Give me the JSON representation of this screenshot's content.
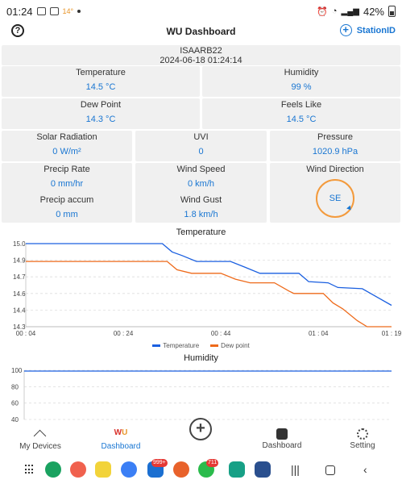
{
  "status_bar": {
    "time": "01:24",
    "temp": "14°",
    "battery": "42%"
  },
  "app_bar": {
    "title": "WU Dashboard",
    "station_button": "StationID"
  },
  "station": {
    "id": "ISAARB22",
    "datetime": "2024-06-18 01:24:14"
  },
  "readings": {
    "temperature": {
      "label": "Temperature",
      "value": "14.5 °C"
    },
    "humidity": {
      "label": "Humidity",
      "value": "99 %"
    },
    "dew_point": {
      "label": "Dew Point",
      "value": "14.3 °C"
    },
    "feels_like": {
      "label": "Feels Like",
      "value": "14.5 °C"
    },
    "solar_radiation": {
      "label": "Solar Radiation",
      "value": "0 W/m²"
    },
    "uvi": {
      "label": "UVI",
      "value": "0"
    },
    "pressure": {
      "label": "Pressure",
      "value": "1020.9 hPa"
    },
    "precip_rate": {
      "label": "Precip Rate",
      "value": "0 mm/hr"
    },
    "wind_speed": {
      "label": "Wind Speed",
      "value": "0 km/h"
    },
    "wind_direction": {
      "label": "Wind Direction",
      "value": "SE"
    },
    "precip_accum": {
      "label": "Precip accum",
      "value": "0 mm"
    },
    "wind_gust": {
      "label": "Wind Gust",
      "value": "1.8 km/h"
    }
  },
  "chart_data": [
    {
      "type": "line",
      "title": "Temperature",
      "x": [
        "00:04",
        "00:24",
        "00:44",
        "01:04",
        "01:19"
      ],
      "x_ticks": [
        "00 : 04",
        "00 : 24",
        "00 : 44",
        "01 : 04",
        "01 : 19"
      ],
      "ylim": [
        14.3,
        15.0
      ],
      "y_ticks": [
        "15.0",
        "14.9",
        "14.7",
        "14.6",
        "14.4",
        "14.3"
      ],
      "series": [
        {
          "name": "Temperature",
          "color": "#1a5fe0",
          "points": [
            [
              0,
              15.0
            ],
            [
              28,
              15.0
            ],
            [
              30,
              14.93
            ],
            [
              32,
              14.9
            ],
            [
              35,
              14.85
            ],
            [
              42,
              14.85
            ],
            [
              45,
              14.8
            ],
            [
              48,
              14.75
            ],
            [
              56,
              14.75
            ],
            [
              58,
              14.68
            ],
            [
              62,
              14.67
            ],
            [
              64,
              14.63
            ],
            [
              69,
              14.62
            ],
            [
              72,
              14.55
            ],
            [
              75,
              14.48
            ]
          ]
        },
        {
          "name": "Dew point",
          "color": "#ee6a1a",
          "points": [
            [
              0,
              14.85
            ],
            [
              29,
              14.85
            ],
            [
              31,
              14.78
            ],
            [
              34,
              14.75
            ],
            [
              40,
              14.75
            ],
            [
              43,
              14.7
            ],
            [
              46,
              14.67
            ],
            [
              51,
              14.67
            ],
            [
              54,
              14.6
            ],
            [
              55,
              14.58
            ],
            [
              61,
              14.58
            ],
            [
              63,
              14.5
            ],
            [
              65,
              14.45
            ],
            [
              68,
              14.35
            ],
            [
              70,
              14.3
            ],
            [
              75,
              14.3
            ]
          ]
        }
      ]
    },
    {
      "type": "line",
      "title": "Humidity",
      "ylim": [
        40,
        100
      ],
      "y_ticks": [
        "100",
        "80",
        "60",
        "40"
      ],
      "series": [
        {
          "name": "Humidity",
          "color": "#1a5fe0",
          "points": [
            [
              0,
              99
            ],
            [
              75,
              99
            ]
          ]
        }
      ]
    }
  ],
  "bottom_nav": {
    "my_devices": "My Devices",
    "dashboard": "Dashboard",
    "dashboard2": "Dashboard",
    "setting": "Setting"
  },
  "dock": {
    "outlook_badge": "999+",
    "whatsapp_badge": "711"
  }
}
